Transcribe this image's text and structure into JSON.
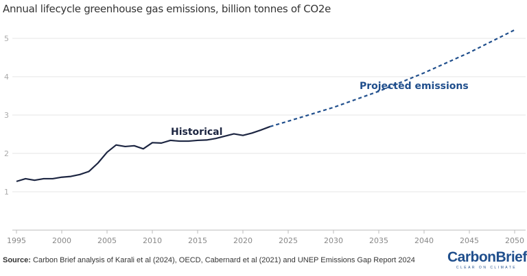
{
  "chart_data": {
    "type": "line",
    "title": "Annual lifecycle greenhouse gas emissions, billion tonnes of CO2e",
    "xlabel": "",
    "ylabel": "",
    "xlim": [
      1995,
      2050
    ],
    "ylim": [
      0,
      5
    ],
    "grid": true,
    "x_ticks": [
      "1995",
      "2000",
      "2005",
      "2010",
      "2015",
      "2020",
      "2025",
      "2030",
      "2035",
      "2040",
      "2045",
      "2050"
    ],
    "y_ticks": [
      "1",
      "2",
      "3",
      "4",
      "5"
    ],
    "series": [
      {
        "name": "Historical",
        "style": "solid",
        "color": "#1c2541",
        "x": [
          1995,
          1996,
          1997,
          1998,
          1999,
          2000,
          2001,
          2002,
          2003,
          2004,
          2005,
          2006,
          2007,
          2008,
          2009,
          2010,
          2011,
          2012,
          2013,
          2014,
          2015,
          2016,
          2017,
          2018,
          2019,
          2020,
          2021,
          2022,
          2023
        ],
        "y": [
          1.27,
          1.34,
          1.3,
          1.34,
          1.34,
          1.38,
          1.4,
          1.45,
          1.53,
          1.75,
          2.03,
          2.22,
          2.18,
          2.2,
          2.12,
          2.28,
          2.27,
          2.34,
          2.32,
          2.32,
          2.34,
          2.35,
          2.39,
          2.45,
          2.51,
          2.47,
          2.53,
          2.61,
          2.7
        ]
      },
      {
        "name": "Projected emissions",
        "style": "dashed",
        "color": "#1f4e8c",
        "x": [
          2023,
          2025,
          2030,
          2035,
          2040,
          2045,
          2050
        ],
        "y": [
          2.7,
          2.84,
          3.2,
          3.62,
          4.1,
          4.63,
          5.22
        ]
      }
    ]
  },
  "source": {
    "label": "Source:",
    "text": " Carbon Brief analysis of Karali et al (2024), OECD, Cabernard et al (2021) and UNEP Emissions Gap Report 2024"
  },
  "logo": {
    "name": "CarbonBrief",
    "tagline": "CLEAR ON CLIMATE"
  }
}
